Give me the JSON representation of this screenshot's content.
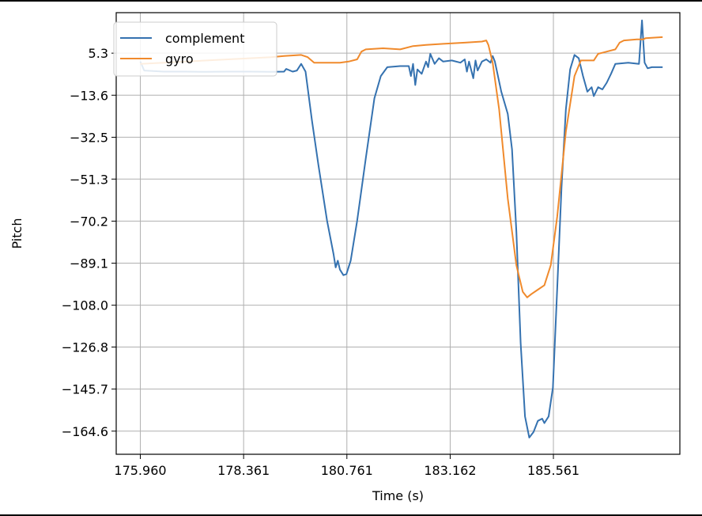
{
  "chart_data": {
    "type": "line",
    "title": "",
    "xlabel": "Time (s)",
    "ylabel": "Pitch",
    "xlim": [
      175.4,
      188.5
    ],
    "ylim": [
      -175.0,
      23.5
    ],
    "x_ticks": [
      {
        "value": 175.96,
        "label": "175.960"
      },
      {
        "value": 178.361,
        "label": "178.361"
      },
      {
        "value": 180.761,
        "label": "180.761"
      },
      {
        "value": 183.162,
        "label": "183.162"
      },
      {
        "value": 185.561,
        "label": "185.561"
      }
    ],
    "y_ticks": [
      {
        "value": 5.3,
        "label": "5.3"
      },
      {
        "value": -13.6,
        "label": "−13.6"
      },
      {
        "value": -32.5,
        "label": "−32.5"
      },
      {
        "value": -51.3,
        "label": "−51.3"
      },
      {
        "value": -70.2,
        "label": "−70.2"
      },
      {
        "value": -89.1,
        "label": "−89.1"
      },
      {
        "value": -108.0,
        "label": "−108.0"
      },
      {
        "value": -126.8,
        "label": "−126.8"
      },
      {
        "value": -145.7,
        "label": "−145.7"
      },
      {
        "value": -164.6,
        "label": "−164.6"
      }
    ],
    "grid": true,
    "legend_position": "top-left",
    "series": [
      {
        "name": "complement",
        "color": "#3572b0",
        "points": [
          [
            175.96,
            1.5
          ],
          [
            176.05,
            -2.5
          ],
          [
            176.5,
            -3.0
          ],
          [
            177.0,
            -3.0
          ],
          [
            177.5,
            -3.1
          ],
          [
            178.0,
            -3.0
          ],
          [
            178.5,
            -3.0
          ],
          [
            179.0,
            -3.1
          ],
          [
            179.3,
            -3.0
          ],
          [
            179.35,
            -1.8
          ],
          [
            179.5,
            -3.0
          ],
          [
            179.6,
            -2.5
          ],
          [
            179.7,
            0.5
          ],
          [
            179.8,
            -3.0
          ],
          [
            179.95,
            -25.0
          ],
          [
            180.1,
            -45.0
          ],
          [
            180.3,
            -70.0
          ],
          [
            180.45,
            -85.0
          ],
          [
            180.5,
            -91.0
          ],
          [
            180.55,
            -88.0
          ],
          [
            180.6,
            -92.0
          ],
          [
            180.68,
            -94.5
          ],
          [
            180.75,
            -94.0
          ],
          [
            180.85,
            -88.0
          ],
          [
            181.0,
            -70.0
          ],
          [
            181.2,
            -42.0
          ],
          [
            181.4,
            -15.0
          ],
          [
            181.55,
            -5.0
          ],
          [
            181.7,
            -1.0
          ],
          [
            182.0,
            -0.5
          ],
          [
            182.2,
            -0.5
          ],
          [
            182.25,
            -5.0
          ],
          [
            182.3,
            0.5
          ],
          [
            182.35,
            -9.0
          ],
          [
            182.4,
            -2.0
          ],
          [
            182.5,
            -4.0
          ],
          [
            182.6,
            1.5
          ],
          [
            182.65,
            -1.0
          ],
          [
            182.7,
            5.0
          ],
          [
            182.8,
            0.5
          ],
          [
            182.9,
            3.0
          ],
          [
            183.0,
            1.5
          ],
          [
            183.2,
            2.0
          ],
          [
            183.4,
            1.0
          ],
          [
            183.5,
            2.5
          ],
          [
            183.55,
            -3.0
          ],
          [
            183.6,
            1.5
          ],
          [
            183.7,
            -6.0
          ],
          [
            183.75,
            2.0
          ],
          [
            183.8,
            -2.5
          ],
          [
            183.9,
            1.5
          ],
          [
            184.0,
            2.5
          ],
          [
            184.1,
            1.0
          ],
          [
            184.15,
            4.0
          ],
          [
            184.2,
            1.5
          ],
          [
            184.35,
            -12.0
          ],
          [
            184.5,
            -22.0
          ],
          [
            184.6,
            -38.0
          ],
          [
            184.7,
            -75.0
          ],
          [
            184.8,
            -125.0
          ],
          [
            184.9,
            -158.0
          ],
          [
            185.0,
            -167.5
          ],
          [
            185.1,
            -165.0
          ],
          [
            185.2,
            -160.0
          ],
          [
            185.3,
            -159.0
          ],
          [
            185.35,
            -161.0
          ],
          [
            185.45,
            -158.0
          ],
          [
            185.55,
            -145.0
          ],
          [
            185.65,
            -100.0
          ],
          [
            185.75,
            -55.0
          ],
          [
            185.85,
            -20.0
          ],
          [
            185.95,
            -2.0
          ],
          [
            186.05,
            4.5
          ],
          [
            186.15,
            3.0
          ],
          [
            186.25,
            -5.0
          ],
          [
            186.35,
            -12.0
          ],
          [
            186.45,
            -10.0
          ],
          [
            186.5,
            -14.0
          ],
          [
            186.6,
            -10.0
          ],
          [
            186.7,
            -11.0
          ],
          [
            186.8,
            -8.0
          ],
          [
            186.9,
            -4.0
          ],
          [
            187.0,
            0.5
          ],
          [
            187.3,
            1.0
          ],
          [
            187.55,
            0.5
          ],
          [
            187.62,
            20.0
          ],
          [
            187.68,
            1.0
          ],
          [
            187.75,
            -1.5
          ],
          [
            187.85,
            -1.0
          ],
          [
            188.1,
            -1.0
          ]
        ]
      },
      {
        "name": "gyro",
        "color": "#f08a2c",
        "points": [
          [
            175.96,
            0.5
          ],
          [
            176.5,
            1.0
          ],
          [
            177.0,
            1.5
          ],
          [
            177.5,
            2.0
          ],
          [
            178.0,
            2.5
          ],
          [
            178.5,
            3.0
          ],
          [
            179.0,
            3.5
          ],
          [
            179.3,
            4.0
          ],
          [
            179.7,
            4.5
          ],
          [
            179.85,
            3.5
          ],
          [
            180.0,
            1.0
          ],
          [
            180.3,
            1.0
          ],
          [
            180.6,
            1.0
          ],
          [
            180.8,
            1.5
          ],
          [
            181.0,
            2.5
          ],
          [
            181.1,
            6.0
          ],
          [
            181.2,
            7.0
          ],
          [
            181.6,
            7.5
          ],
          [
            182.0,
            7.0
          ],
          [
            182.3,
            8.5
          ],
          [
            182.6,
            9.0
          ],
          [
            183.0,
            9.5
          ],
          [
            183.5,
            10.0
          ],
          [
            183.9,
            10.5
          ],
          [
            184.0,
            11.0
          ],
          [
            184.05,
            9.0
          ],
          [
            184.15,
            1.0
          ],
          [
            184.3,
            -20.0
          ],
          [
            184.5,
            -60.0
          ],
          [
            184.7,
            -90.0
          ],
          [
            184.85,
            -102.0
          ],
          [
            184.95,
            -104.5
          ],
          [
            185.05,
            -103.0
          ],
          [
            185.2,
            -101.0
          ],
          [
            185.35,
            -99.0
          ],
          [
            185.5,
            -90.0
          ],
          [
            185.65,
            -68.0
          ],
          [
            185.85,
            -30.0
          ],
          [
            186.05,
            -5.0
          ],
          [
            186.2,
            2.0
          ],
          [
            186.35,
            2.0
          ],
          [
            186.5,
            2.0
          ],
          [
            186.6,
            5.0
          ],
          [
            186.8,
            6.0
          ],
          [
            187.0,
            7.0
          ],
          [
            187.1,
            10.0
          ],
          [
            187.2,
            11.0
          ],
          [
            187.5,
            11.5
          ],
          [
            187.65,
            11.5
          ],
          [
            187.7,
            12.0
          ],
          [
            188.1,
            12.5
          ]
        ]
      }
    ]
  }
}
